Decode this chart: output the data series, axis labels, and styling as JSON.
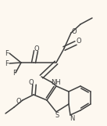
{
  "bg_color": "#fdf8f0",
  "line_color": "#404040",
  "lw": 1.1,
  "fs": 6.0,
  "fig_w": 1.37,
  "fig_h": 1.61,
  "dpi": 100,
  "xlim": [
    0,
    137
  ],
  "ylim": [
    0,
    161
  ]
}
